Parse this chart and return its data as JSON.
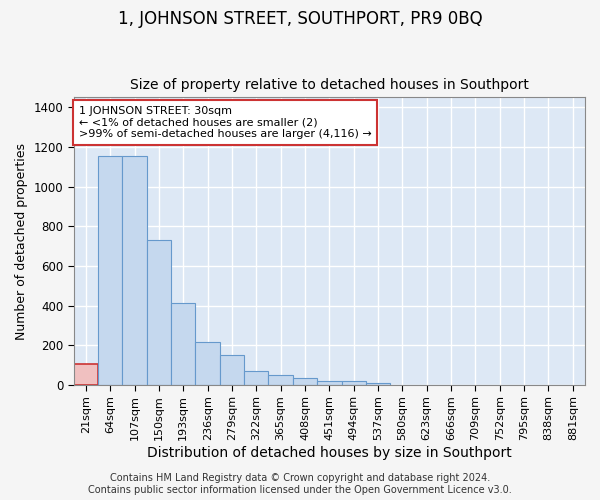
{
  "title": "1, JOHNSON STREET, SOUTHPORT, PR9 0BQ",
  "subtitle": "Size of property relative to detached houses in Southport",
  "xlabel": "Distribution of detached houses by size in Southport",
  "ylabel": "Number of detached properties",
  "categories": [
    "21sqm",
    "64sqm",
    "107sqm",
    "150sqm",
    "193sqm",
    "236sqm",
    "279sqm",
    "322sqm",
    "365sqm",
    "408sqm",
    "451sqm",
    "494sqm",
    "537sqm",
    "580sqm",
    "623sqm",
    "666sqm",
    "709sqm",
    "752sqm",
    "795sqm",
    "838sqm",
    "881sqm"
  ],
  "bar_heights": [
    105,
    1155,
    1155,
    730,
    415,
    215,
    150,
    70,
    48,
    33,
    18,
    18,
    8,
    0,
    0,
    0,
    0,
    0,
    0,
    0,
    0
  ],
  "bar_color": "#c5d8ee",
  "bar_edge_color": "#6699cc",
  "highlight_bar_index": 0,
  "highlight_fill": "#f0c0c0",
  "highlight_edge": "#cc3333",
  "annotation_line1": "1 JOHNSON STREET: 30sqm",
  "annotation_line2": "← <1% of detached houses are smaller (2)",
  "annotation_line3": ">99% of semi-detached houses are larger (4,116) →",
  "annotation_box_edge": "#cc3333",
  "ylim": [
    0,
    1450
  ],
  "yticks": [
    0,
    200,
    400,
    600,
    800,
    1000,
    1200,
    1400
  ],
  "footer": "Contains HM Land Registry data © Crown copyright and database right 2024.\nContains public sector information licensed under the Open Government Licence v3.0.",
  "bg_color": "#dde8f5",
  "fig_bg_color": "#f5f5f5",
  "title_fontsize": 12,
  "subtitle_fontsize": 10,
  "tick_fontsize": 8,
  "ylabel_fontsize": 9,
  "xlabel_fontsize": 10,
  "footer_fontsize": 7
}
